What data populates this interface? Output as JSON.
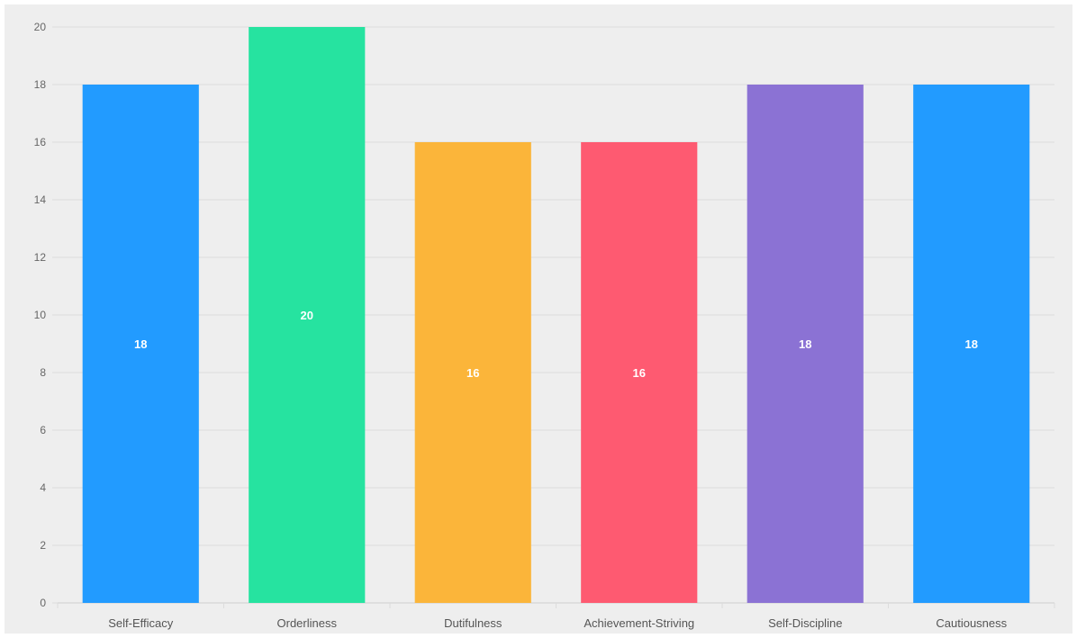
{
  "chart_data": {
    "type": "bar",
    "title": "",
    "xlabel": "",
    "ylabel": "",
    "categories": [
      "Self-Efficacy",
      "Orderliness",
      "Dutifulness",
      "Achievement-Striving",
      "Self-Discipline",
      "Cautiousness"
    ],
    "values": [
      18,
      20,
      16,
      16,
      18,
      18
    ],
    "colors": [
      "#229bff",
      "#26e3a0",
      "#fbb53a",
      "#fe5a71",
      "#8b72d4",
      "#229bff"
    ],
    "ylim": [
      0,
      20
    ],
    "yticks": [
      0,
      2,
      4,
      6,
      8,
      10,
      12,
      14,
      16,
      18,
      20
    ],
    "grid": true,
    "data_labels": true,
    "data_label_color": "#ffffff",
    "legend": "none"
  }
}
